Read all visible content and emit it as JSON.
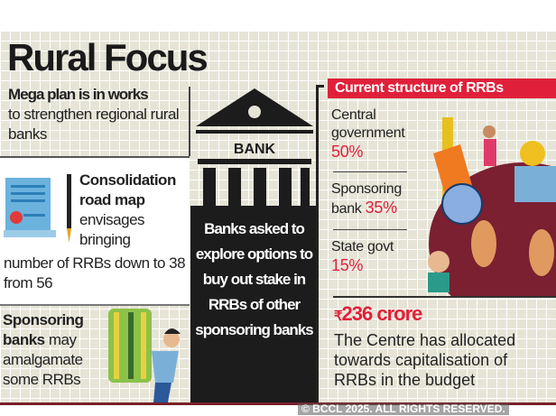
{
  "title": "Rural Focus",
  "mega": {
    "bold": "Mega plan is in works",
    "text": "to strengthen regional rural banks"
  },
  "consolidation": {
    "bold": "Consolidation road map",
    "text": "envisages bringing",
    "text2": "number of RRBs down to 38 from 56"
  },
  "sponsoring": {
    "bold": "Sponsoring banks",
    "text": "may amalgamate some RRBs"
  },
  "bank_label": "BANK",
  "middle_text": "Banks asked to explore options to buy out stake in RRBs of other sponsoring banks",
  "structure": {
    "header": "Current structure of RRBs",
    "items": [
      {
        "label": "Central government",
        "value": "50%"
      },
      {
        "label": "Sponsoring bank",
        "value": "35%"
      },
      {
        "label": "State govt",
        "value": "15%"
      }
    ]
  },
  "allocation": {
    "symbol": "₹",
    "amount": "236 crore",
    "text": "The Centre has allocated towards capitalisation of RRBs in the budget"
  },
  "watermark": "© BCCL 2025. ALL RIGHTS RESERVED.",
  "colors": {
    "accent": "#e0203a",
    "panel": "#1c1c1c",
    "background": "#e6e4d6"
  }
}
